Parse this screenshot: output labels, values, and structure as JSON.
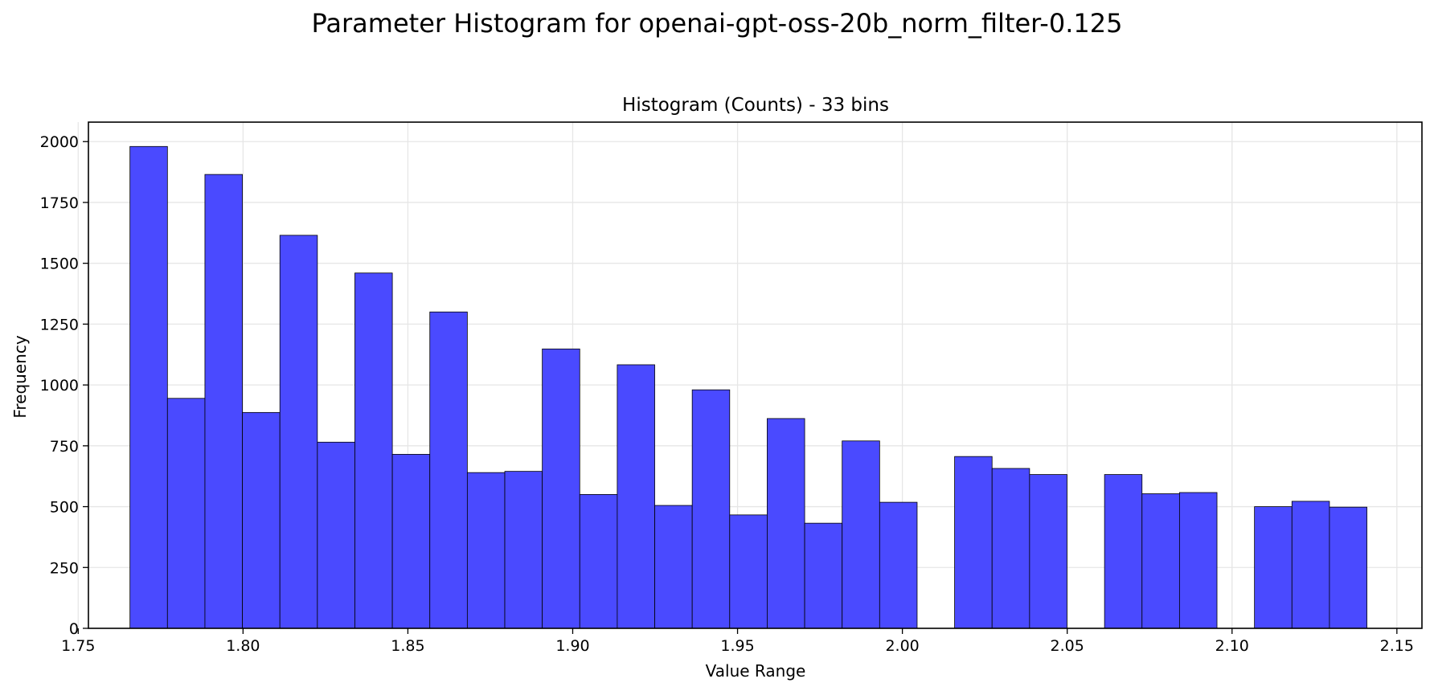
{
  "chart_data": {
    "type": "bar",
    "title": "Parameter Histogram for openai-gpt-oss-20b_norm_filter-0.125",
    "subtitle": "Histogram (Counts) - 33 bins",
    "xlabel": "Value Range",
    "ylabel": "Frequency",
    "bin_start": 1.7657,
    "bin_width": 0.01137,
    "bins": 33,
    "values": [
      1980,
      945,
      1865,
      887,
      1615,
      765,
      1460,
      715,
      1300,
      640,
      645,
      1148,
      550,
      1083,
      505,
      980,
      466,
      862,
      432,
      770,
      518,
      0,
      706,
      657,
      632,
      0,
      632,
      553,
      558,
      0,
      500,
      522,
      498
    ],
    "xlim": [
      1.7531,
      2.1576
    ],
    "ylim": [
      0,
      2080
    ],
    "xticks": [
      1.75,
      1.8,
      1.85,
      1.9,
      1.95,
      2.0,
      2.05,
      2.1,
      2.15
    ],
    "xtick_labels": [
      "1.75",
      "1.80",
      "1.85",
      "1.90",
      "1.95",
      "2.00",
      "2.05",
      "2.10",
      "2.15"
    ],
    "yticks": [
      0,
      250,
      500,
      750,
      1000,
      1250,
      1500,
      1750,
      2000
    ],
    "ytick_labels": [
      "0",
      "250",
      "500",
      "750",
      "1000",
      "1250",
      "1500",
      "1750",
      "2000"
    ],
    "grid": true,
    "legend": false,
    "colors": {
      "bar_fill": "#4a4aff",
      "bar_edge": "#000000",
      "grid": "#e6e6e6",
      "axes": "#000000"
    }
  }
}
